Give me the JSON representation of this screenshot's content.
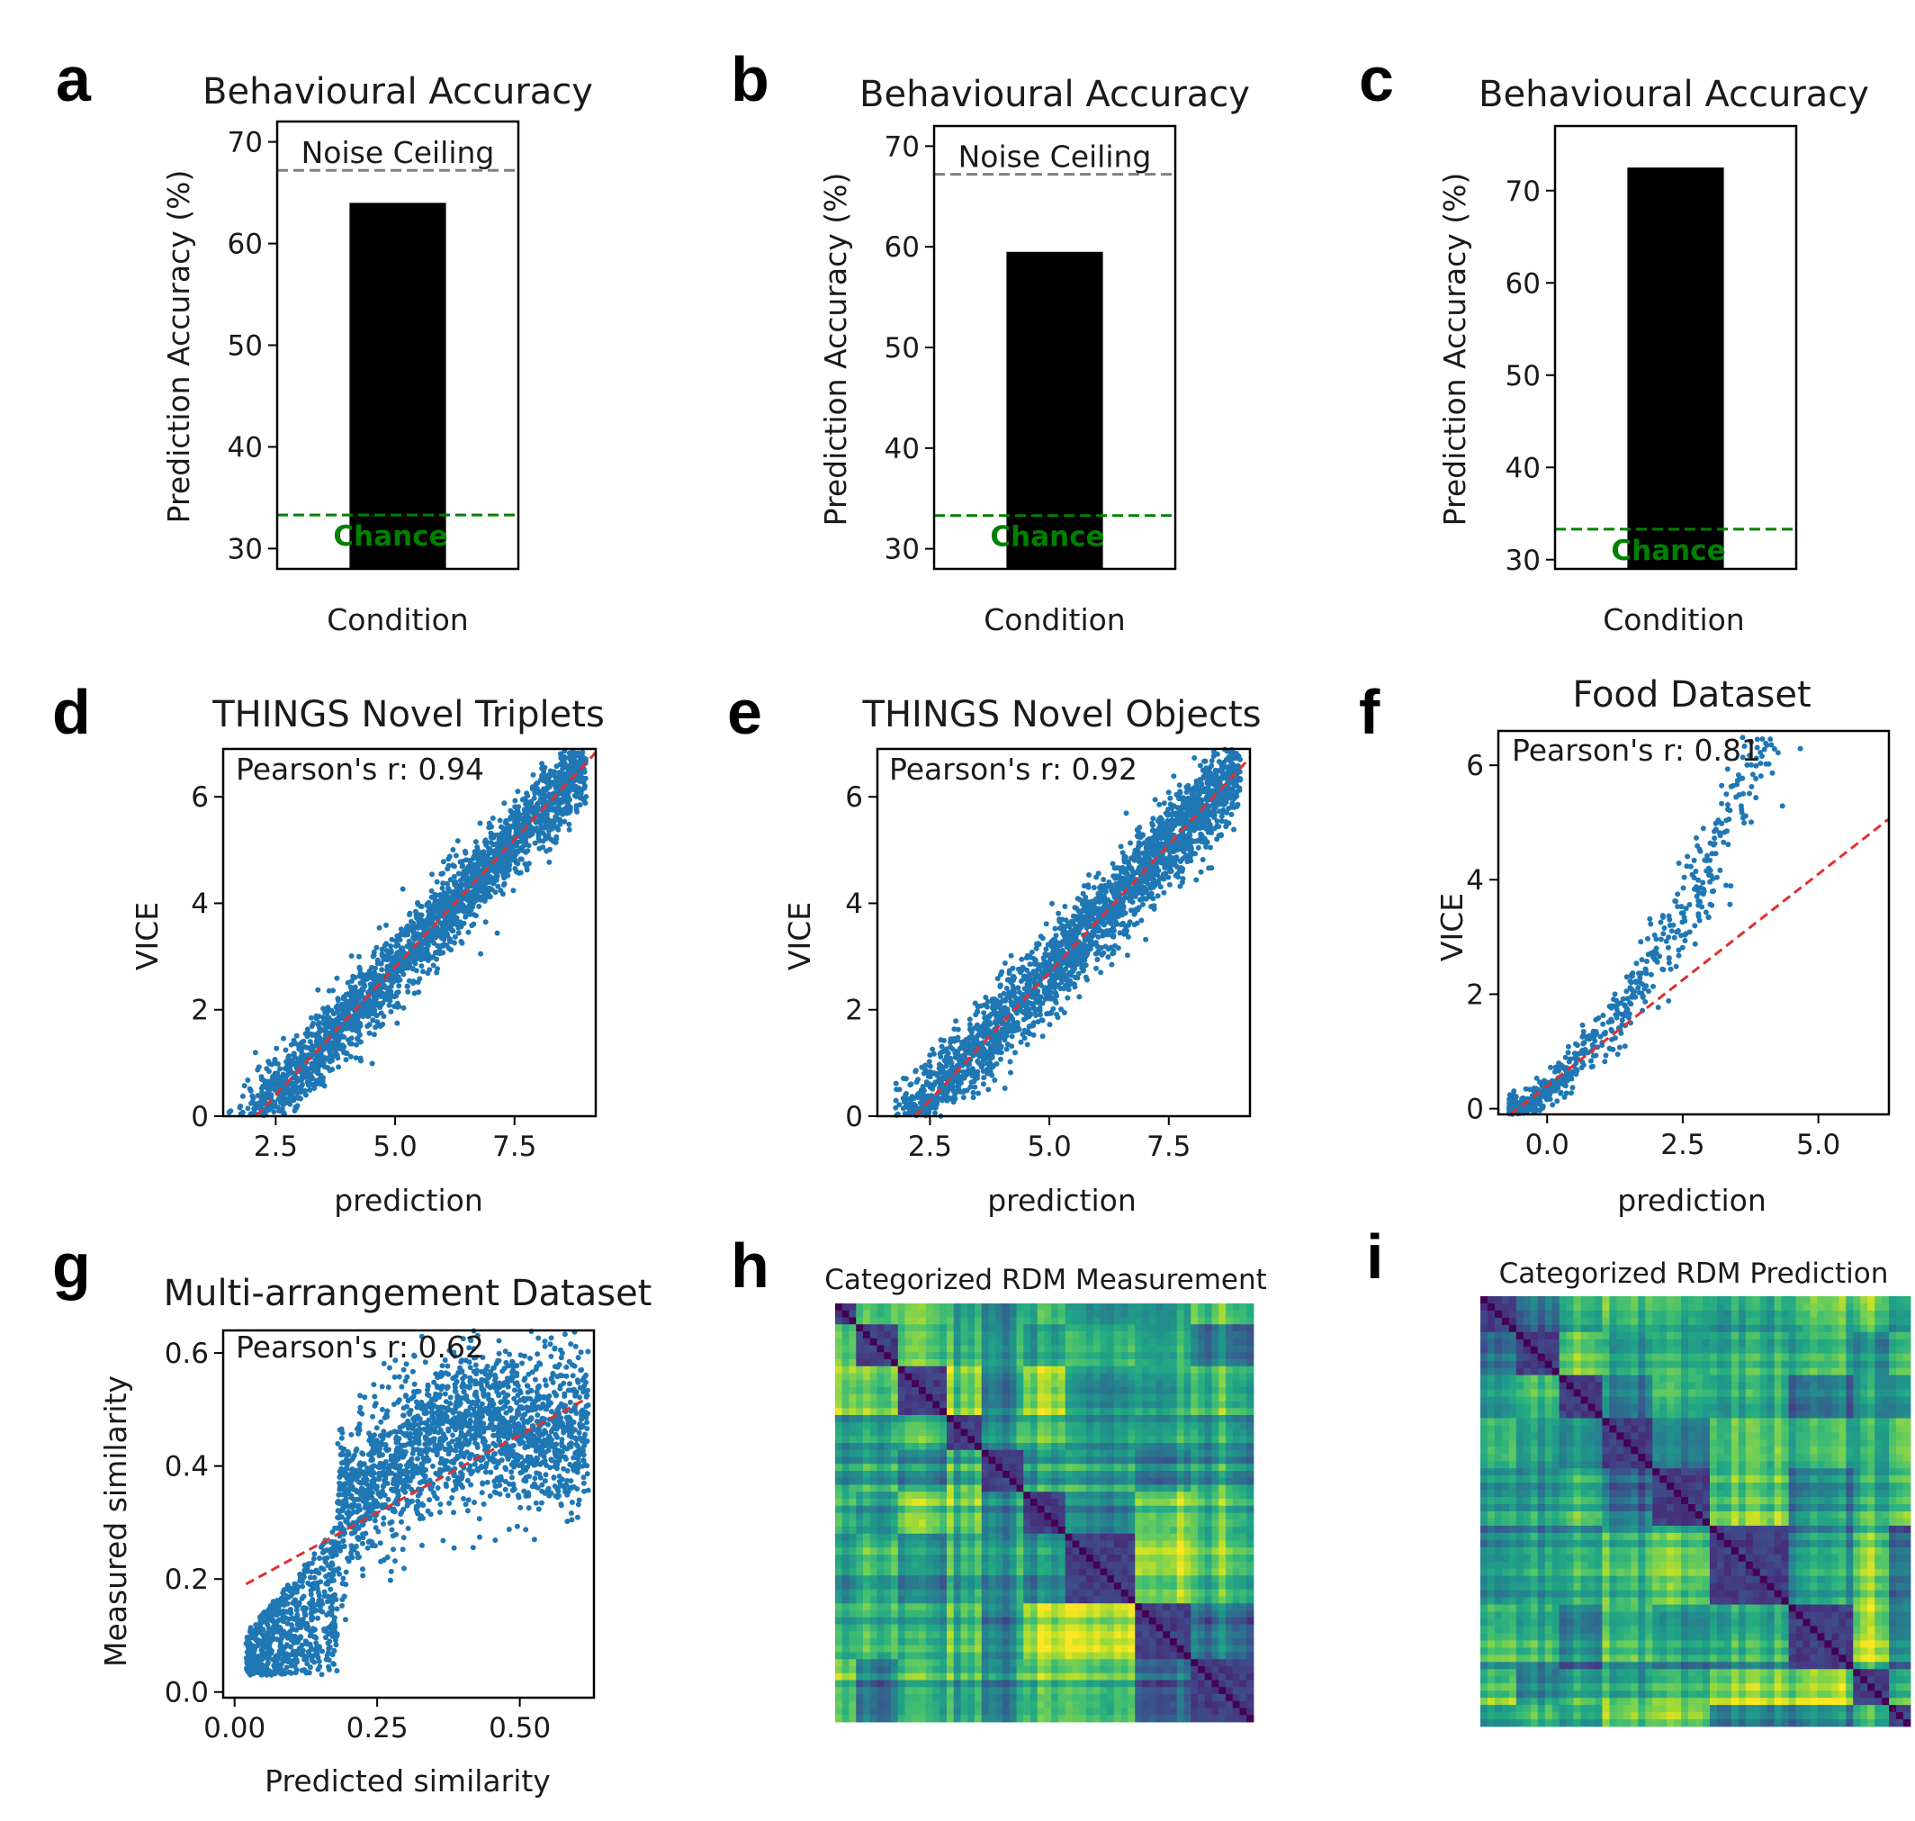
{
  "colors": {
    "bar": "#000000",
    "scatter": "#1f77b4",
    "fit_line": "#e03030",
    "noise_ceiling": "#808080",
    "chance": "#008000"
  },
  "panel_letters": [
    "a",
    "b",
    "c",
    "d",
    "e",
    "f",
    "g",
    "h",
    "i"
  ],
  "chart_data": [
    {
      "id": "a",
      "type": "bar",
      "title": "Behavioural Accuracy",
      "ylabel": "Prediction Accuracy (%)",
      "xlabel": "Condition",
      "categories": [
        "Condition"
      ],
      "values": [
        64.0
      ],
      "ylim": [
        28,
        72
      ],
      "yticks": [
        30,
        40,
        50,
        60,
        70
      ],
      "noise_ceiling": {
        "value": 67.2,
        "label": "Noise Ceiling"
      },
      "chance": {
        "value": 33.3,
        "label": "Chance"
      }
    },
    {
      "id": "b",
      "type": "bar",
      "title": "Behavioural Accuracy",
      "ylabel": "Prediction Accuracy (%)",
      "xlabel": "Condition",
      "categories": [
        "Condition"
      ],
      "values": [
        59.5
      ],
      "ylim": [
        28,
        72
      ],
      "yticks": [
        30,
        40,
        50,
        60,
        70
      ],
      "noise_ceiling": {
        "value": 67.2,
        "label": "Noise Ceiling"
      },
      "chance": {
        "value": 33.3,
        "label": "Chance"
      }
    },
    {
      "id": "c",
      "type": "bar",
      "title": "Behavioural Accuracy",
      "ylabel": "Prediction Accuracy (%)",
      "xlabel": "Condition",
      "categories": [
        "Condition"
      ],
      "values": [
        72.5
      ],
      "ylim": [
        29,
        77
      ],
      "yticks": [
        30,
        40,
        50,
        60,
        70
      ],
      "chance": {
        "value": 33.3,
        "label": "Chance"
      }
    },
    {
      "id": "d",
      "type": "scatter",
      "title": "THINGS Novel Triplets",
      "xlabel": "prediction",
      "ylabel": "VICE",
      "xlim": [
        1.4,
        9.2
      ],
      "ylim": [
        0,
        6.9
      ],
      "xticks": [
        2.5,
        5.0,
        7.5
      ],
      "yticks": [
        0,
        2,
        4,
        6
      ],
      "annotation": "Pearson's r: 0.94",
      "fit": {
        "slope": 0.96,
        "intercept": -2.0
      },
      "cloud": {
        "x_min": 1.5,
        "x_max": 9.0,
        "spread": 0.35
      }
    },
    {
      "id": "e",
      "type": "scatter",
      "title": "THINGS Novel Objects",
      "xlabel": "prediction",
      "ylabel": "VICE",
      "xlim": [
        1.4,
        9.2
      ],
      "ylim": [
        0,
        6.9
      ],
      "xticks": [
        2.5,
        5.0,
        7.5
      ],
      "yticks": [
        0,
        2,
        4,
        6
      ],
      "annotation": "Pearson's r: 0.92",
      "fit": {
        "slope": 0.96,
        "intercept": -2.1
      },
      "cloud": {
        "x_min": 1.5,
        "x_max": 9.0,
        "spread": 0.4
      }
    },
    {
      "id": "f",
      "type": "scatter",
      "title": "Food Dataset",
      "xlabel": "prediction",
      "ylabel": "VICE",
      "xlim": [
        -0.9,
        6.3
      ],
      "ylim": [
        -0.1,
        6.6
      ],
      "xticks": [
        0.0,
        2.5,
        5.0
      ],
      "yticks": [
        0,
        2,
        4,
        6
      ],
      "annotation": "Pearson's r: 0.81",
      "fit": {
        "slope": 0.74,
        "intercept": 0.4
      },
      "cloud": {
        "x_min": -0.7,
        "x_max": 5.0,
        "spread": 0.45
      }
    },
    {
      "id": "g",
      "type": "scatter",
      "title": "Multi-arrangement Dataset",
      "xlabel": "Predicted similarity",
      "ylabel": "Measured similarity",
      "xlim": [
        -0.02,
        0.63
      ],
      "ylim": [
        -0.01,
        0.64
      ],
      "xticks": [
        0.0,
        0.25,
        0.5
      ],
      "yticks": [
        0.0,
        0.2,
        0.4,
        0.6
      ],
      "annotation": "Pearson's r: 0.62",
      "fit": {
        "slope": 0.55,
        "intercept": 0.18
      },
      "cloud": {
        "x_min": 0.02,
        "x_max": 0.62,
        "spread": 0.07
      }
    },
    {
      "id": "h",
      "type": "heatmap",
      "title": "Categorized RDM Measurement",
      "blocks": [
        0.0,
        0.05,
        0.15,
        0.26,
        0.34,
        0.44,
        0.55,
        0.71,
        0.85,
        1.0
      ]
    },
    {
      "id": "i",
      "type": "heatmap",
      "title": "Categorized RDM Prediction",
      "blocks": [
        0.0,
        0.07,
        0.17,
        0.27,
        0.4,
        0.52,
        0.71,
        0.86,
        0.94,
        1.0
      ]
    }
  ]
}
